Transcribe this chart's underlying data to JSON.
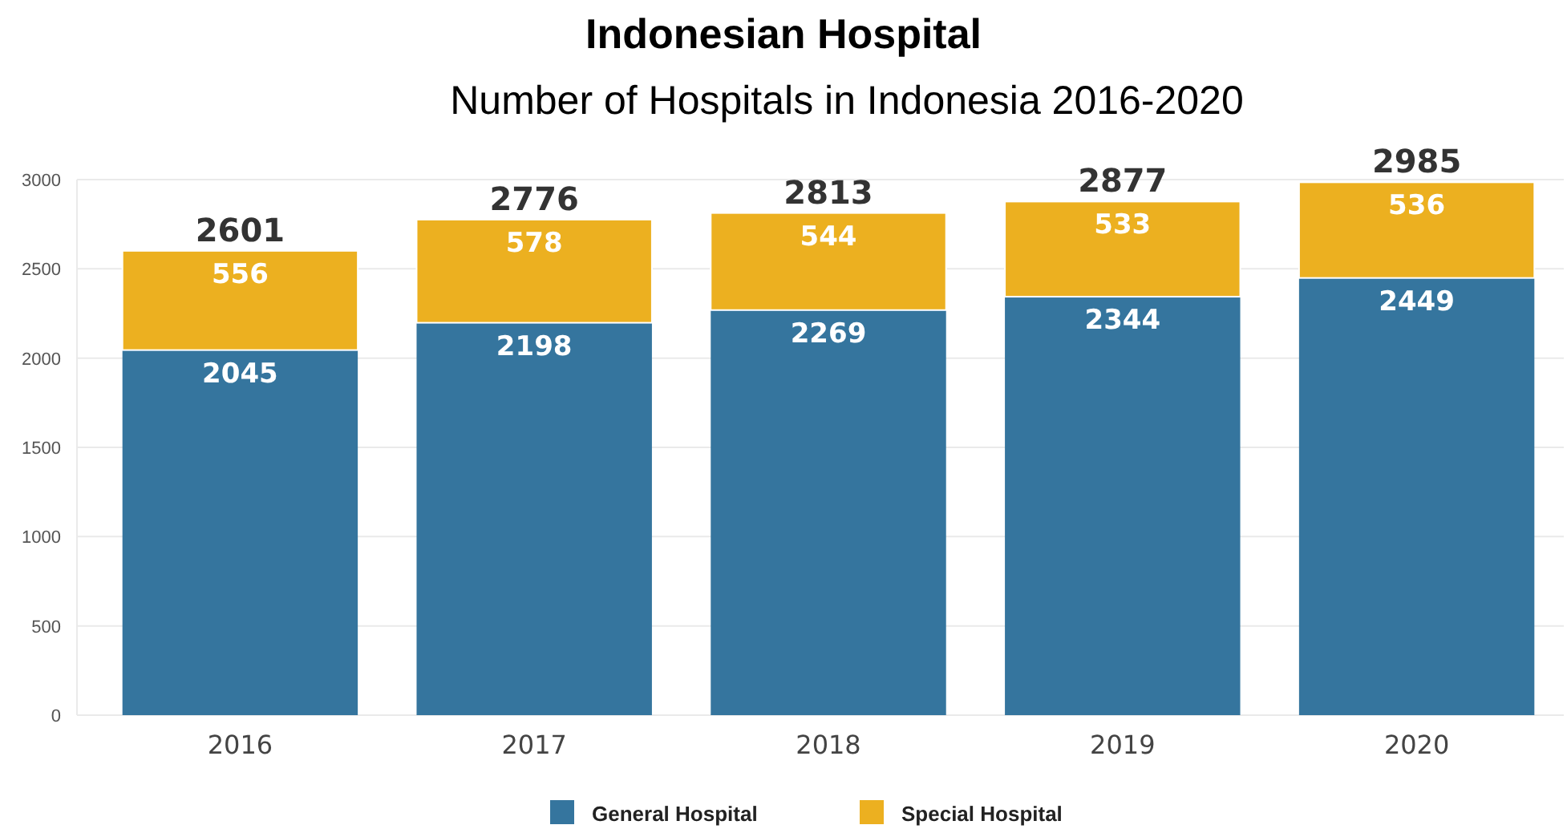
{
  "chart_data": {
    "type": "bar",
    "title": "Indonesian Hospital",
    "subtitle": "Number of Hospitals in Indonesia 2016-2020",
    "categories": [
      "2016",
      "2017",
      "2018",
      "2019",
      "2020"
    ],
    "series": [
      {
        "name": "General Hospital",
        "color": "#35759e",
        "values": [
          2045,
          2198,
          2269,
          2344,
          2449
        ]
      },
      {
        "name": "Special Hospital",
        "color": "#ecb020",
        "values": [
          556,
          578,
          544,
          533,
          536
        ]
      }
    ],
    "stacked": true,
    "data_labels": true,
    "totals": [
      "2601",
      "2776",
      "2813",
      "2877",
      "2985"
    ],
    "ylim": [
      0,
      3000
    ],
    "yticks": [
      0,
      500,
      1000,
      1500,
      2000,
      2500,
      3000
    ],
    "grid": "y",
    "legend": "bottom"
  }
}
